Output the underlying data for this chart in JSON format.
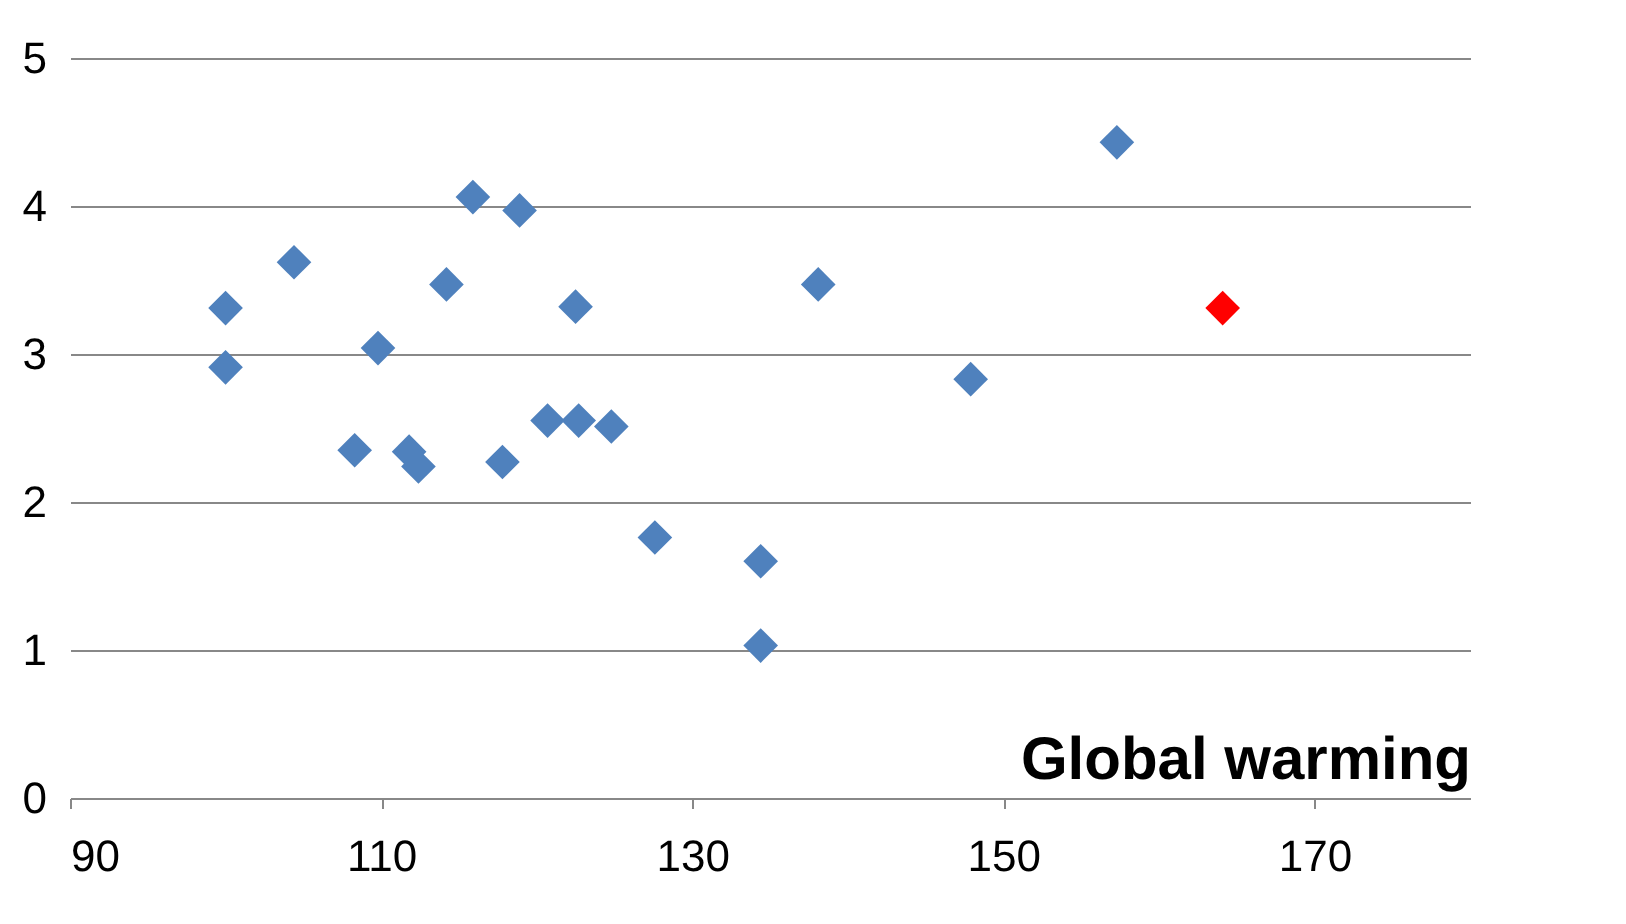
{
  "chart_data": {
    "type": "scatter",
    "xlabel": "Global warming",
    "x": [
      100,
      100,
      104.4,
      109.8,
      108.3,
      111.8,
      112.4,
      114.2,
      115.9,
      118.9,
      117.8,
      120.7,
      122.5,
      122.7,
      124.8,
      127.6,
      134.4,
      134.4,
      138.1,
      147.9,
      157.3,
      164.1
    ],
    "values": [
      3.31,
      2.91,
      3.62,
      3.04,
      2.35,
      2.34,
      2.24,
      3.47,
      4.06,
      3.97,
      2.27,
      2.55,
      3.32,
      2.55,
      2.51,
      1.76,
      1.6,
      1.03,
      3.47,
      2.83,
      4.43,
      3.31
    ],
    "colors": [
      "#4f81bd",
      "#4f81bd",
      "#4f81bd",
      "#4f81bd",
      "#4f81bd",
      "#4f81bd",
      "#4f81bd",
      "#4f81bd",
      "#4f81bd",
      "#4f81bd",
      "#4f81bd",
      "#4f81bd",
      "#4f81bd",
      "#4f81bd",
      "#4f81bd",
      "#4f81bd",
      "#4f81bd",
      "#4f81bd",
      "#4f81bd",
      "#4f81bd",
      "#4f81bd",
      "#ff0000"
    ],
    "xlim": [
      90,
      180
    ],
    "xticks": [
      90,
      110,
      130,
      150,
      170
    ],
    "ylim": [
      0,
      5
    ],
    "yticks": [
      0,
      1,
      2,
      3,
      4,
      5
    ],
    "grid": "y",
    "marker": "diamond"
  }
}
